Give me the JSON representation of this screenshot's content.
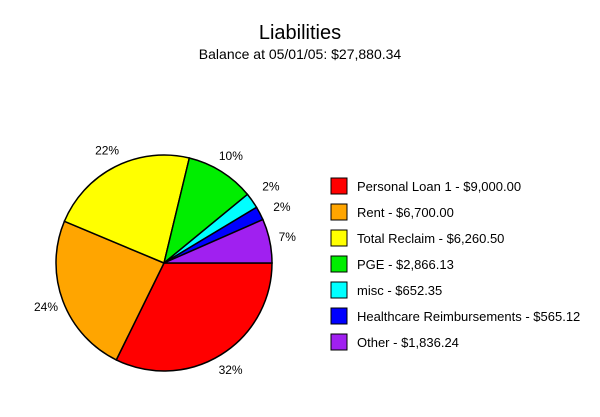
{
  "chart_data": {
    "type": "pie",
    "title": "Liabilities",
    "subtitle": "Balance at 05/01/05: $27,880.34",
    "legend_position": "right",
    "start": "east, clockwise",
    "slices": [
      {
        "label": "Personal Loan 1 - $9,000.00",
        "value": 9000.0,
        "percent_label": "32%",
        "color": "#ff0000"
      },
      {
        "label": "Rent - $6,700.00",
        "value": 6700.0,
        "percent_label": "24%",
        "color": "#ffa500"
      },
      {
        "label": "Total Reclaim - $6,260.50",
        "value": 6260.5,
        "percent_label": "22%",
        "color": "#ffff00"
      },
      {
        "label": "PGE - $2,866.13",
        "value": 2866.13,
        "percent_label": "10%",
        "color": "#00ee00"
      },
      {
        "label": "misc - $652.35",
        "value": 652.35,
        "percent_label": "2%",
        "color": "#00ffff"
      },
      {
        "label": "Healthcare Reimbursements - $565.12",
        "value": 565.12,
        "percent_label": "2%",
        "color": "#0000ff"
      },
      {
        "label": "Other - $1,836.24",
        "value": 1836.24,
        "percent_label": "7%",
        "color": "#a020f0"
      }
    ]
  }
}
